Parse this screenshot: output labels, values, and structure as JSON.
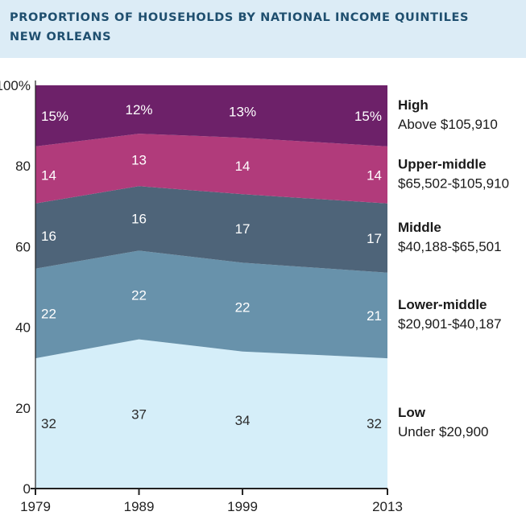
{
  "header": {
    "title": "PROPORTIONS OF HOUSEHOLDS BY NATIONAL INCOME QUINTILES",
    "subtitle": "NEW ORLEANS",
    "background": "#dcecf6",
    "title_color": "#1f4f6f"
  },
  "chart_data": {
    "type": "area",
    "stacked": true,
    "x": [
      "1979",
      "1989",
      "1999",
      "2013"
    ],
    "ylim": [
      0,
      100
    ],
    "yticks": [
      "0",
      "20",
      "40",
      "60",
      "80",
      "100%"
    ],
    "grid": false,
    "legend_position": "right",
    "series": [
      {
        "name": "Low",
        "range": "Under $20,900",
        "values": [
          32,
          37,
          34,
          32
        ],
        "labels": [
          "32",
          "37",
          "34",
          "32"
        ],
        "color": "#d5eef9",
        "label_color": "#2b2b2b"
      },
      {
        "name": "Lower-middle",
        "range": "$20,901-$40,187",
        "values": [
          22,
          22,
          22,
          21
        ],
        "labels": [
          "22",
          "22",
          "22",
          "21"
        ],
        "color": "#6892ab",
        "label_color": "#ffffff"
      },
      {
        "name": "Middle",
        "range": "$40,188-$65,501",
        "values": [
          16,
          16,
          17,
          17
        ],
        "labels": [
          "16",
          "16",
          "17",
          "17"
        ],
        "color": "#4e6479",
        "label_color": "#ffffff"
      },
      {
        "name": "Upper-middle",
        "range": "$65,502-$105,910",
        "values": [
          14,
          13,
          14,
          14
        ],
        "labels": [
          "14",
          "13",
          "14",
          "14"
        ],
        "color": "#b13b7b",
        "label_color": "#ffffff"
      },
      {
        "name": "High",
        "range": "Above $105,910",
        "values": [
          15,
          12,
          13,
          15
        ],
        "labels": [
          "15%",
          "12%",
          "13%",
          "15%"
        ],
        "color": "#6d2169",
        "label_color": "#ffffff"
      }
    ]
  }
}
